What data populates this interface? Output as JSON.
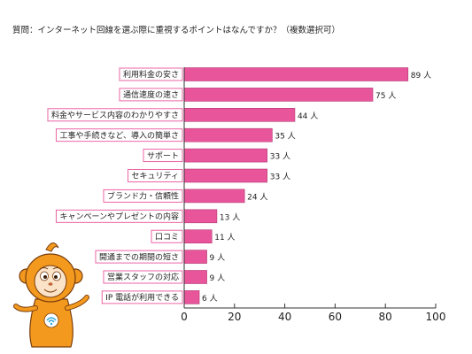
{
  "title": "質問：インターネット回線を選ぶ際に重視するポイントはなんですか？（複数選択可）",
  "colors": {
    "bar": "#e8559b",
    "bar_edge": "#b43a73",
    "label_border": "#e8559b"
  },
  "mascot_icon": "orange-monkey-mascot-icon",
  "chart_data": {
    "type": "bar",
    "orientation": "horizontal",
    "categories": [
      "利用料金の安さ",
      "通信速度の速さ",
      "料金やサービス内容のわかりやすさ",
      "工事や手続きなど、導入の簡単さ",
      "サポート",
      "セキュリティ",
      "ブランド力・信頼性",
      "キャンペーンやプレゼントの内容",
      "口コミ",
      "開通までの期間の短さ",
      "営業スタッフの対応",
      "IP 電話が利用できる"
    ],
    "values": [
      89,
      75,
      44,
      35,
      33,
      33,
      24,
      13,
      11,
      9,
      9,
      6
    ],
    "unit": "人",
    "xlim": [
      0,
      100
    ],
    "xticks": [
      0,
      20,
      40,
      60,
      80,
      100
    ],
    "grid": false,
    "legend": "none"
  }
}
